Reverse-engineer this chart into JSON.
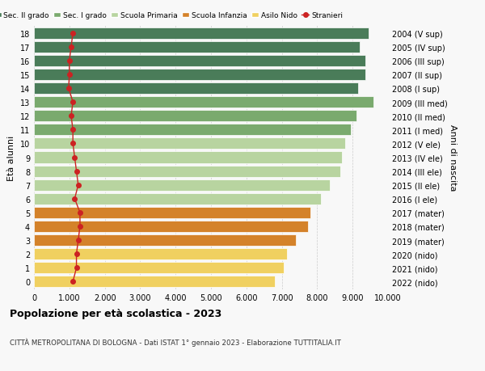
{
  "ages": [
    18,
    17,
    16,
    15,
    14,
    13,
    12,
    11,
    10,
    9,
    8,
    7,
    6,
    5,
    4,
    3,
    2,
    1,
    0
  ],
  "right_labels": [
    "2004 (V sup)",
    "2005 (IV sup)",
    "2006 (III sup)",
    "2007 (II sup)",
    "2008 (I sup)",
    "2009 (III med)",
    "2010 (II med)",
    "2011 (I med)",
    "2012 (V ele)",
    "2013 (IV ele)",
    "2014 (III ele)",
    "2015 (II ele)",
    "2016 (I ele)",
    "2017 (mater)",
    "2018 (mater)",
    "2019 (mater)",
    "2020 (nido)",
    "2021 (nido)",
    "2022 (nido)"
  ],
  "bar_values": [
    9450,
    9200,
    9350,
    9350,
    9150,
    9600,
    9100,
    8950,
    8800,
    8700,
    8650,
    8350,
    8100,
    7800,
    7750,
    7400,
    7150,
    7050,
    6800
  ],
  "bar_colors": [
    "#4a7c59",
    "#4a7c59",
    "#4a7c59",
    "#4a7c59",
    "#4a7c59",
    "#7aaa6e",
    "#7aaa6e",
    "#7aaa6e",
    "#b8d4a0",
    "#b8d4a0",
    "#b8d4a0",
    "#b8d4a0",
    "#b8d4a0",
    "#d4822a",
    "#d4822a",
    "#d4822a",
    "#f0d060",
    "#f0d060",
    "#f0d060"
  ],
  "stranieri_values": [
    1100,
    1050,
    1000,
    1000,
    980,
    1100,
    1050,
    1100,
    1100,
    1150,
    1200,
    1250,
    1150,
    1300,
    1300,
    1250,
    1200,
    1200,
    1100
  ],
  "stranieri_color": "#cc2222",
  "legend_labels": [
    "Sec. II grado",
    "Sec. I grado",
    "Scuola Primaria",
    "Scuola Infanzia",
    "Asilo Nido",
    "Stranieri"
  ],
  "legend_colors": [
    "#4a7c59",
    "#7aaa6e",
    "#b8d4a0",
    "#d4822a",
    "#f0d060",
    "#cc2222"
  ],
  "ylabel_left": "Età alunni",
  "ylabel_right": "Anni di nascita",
  "title": "Popolazione per età scolastica - 2023",
  "subtitle": "CITTÀ METROPOLITANA DI BOLOGNA - Dati ISTAT 1° gennaio 2023 - Elaborazione TUTTITALIA.IT",
  "xlim": [
    0,
    10000
  ],
  "xticks": [
    0,
    1000,
    2000,
    3000,
    4000,
    5000,
    6000,
    7000,
    8000,
    9000,
    10000
  ],
  "bg_color": "#f8f8f8",
  "grid_color": "#cccccc"
}
